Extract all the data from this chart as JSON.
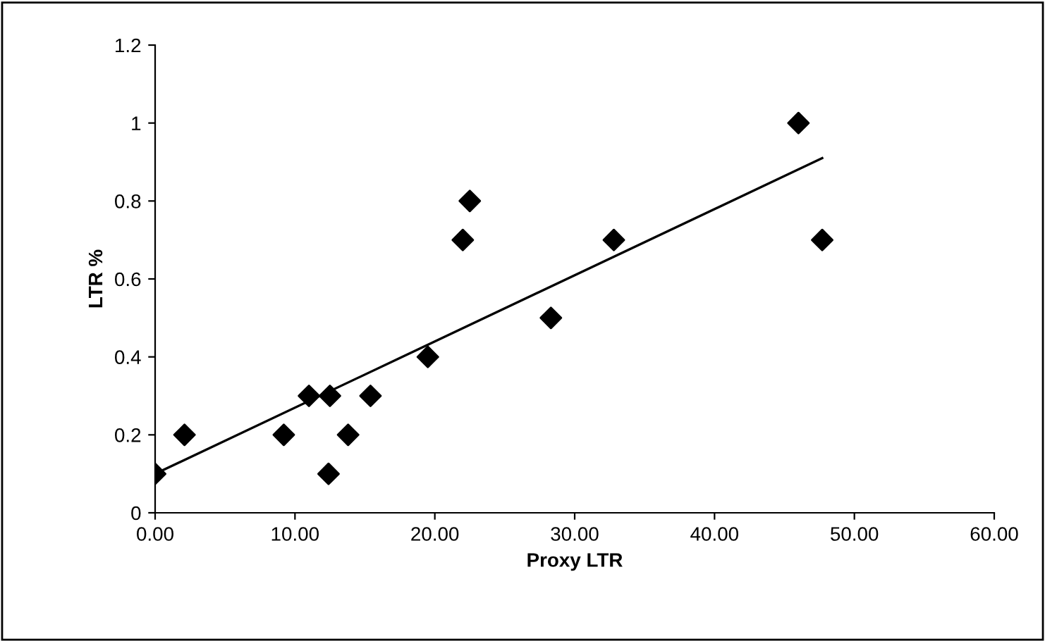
{
  "chart_data": {
    "type": "scatter",
    "xlabel": "Proxy LTR",
    "ylabel": "LTR %",
    "xlim": [
      0,
      60
    ],
    "xticks": [
      {
        "value": 0,
        "label": "0.00"
      },
      {
        "value": 10,
        "label": "10.00"
      },
      {
        "value": 20,
        "label": "20.00"
      },
      {
        "value": 30,
        "label": "30.00"
      },
      {
        "value": 40,
        "label": "40.00"
      },
      {
        "value": 50,
        "label": "50.00"
      },
      {
        "value": 60,
        "label": "60.00"
      }
    ],
    "ylim": [
      0,
      1.2
    ],
    "yticks": [
      0,
      0.2,
      0.4,
      0.6,
      0.8,
      1,
      1.2
    ],
    "grid": false,
    "legend": false,
    "series": [
      {
        "marker": "diamond",
        "color": "#000000",
        "x": [
          0,
          2.1,
          9.2,
          11.0,
          12.5,
          12.4,
          13.8,
          15.4,
          19.5,
          22.0,
          22.5,
          28.3,
          32.8,
          46.0,
          47.7
        ],
        "values": [
          0.1,
          0.2,
          0.2,
          0.3,
          0.3,
          0.1,
          0.2,
          0.3,
          0.4,
          0.7,
          0.8,
          0.5,
          0.7,
          1.0,
          0.7
        ]
      },
      {
        "type": "line",
        "marker": "none",
        "color": "#000000",
        "x": [
          0,
          47.7
        ],
        "values": [
          0.1,
          0.91
        ]
      }
    ]
  }
}
